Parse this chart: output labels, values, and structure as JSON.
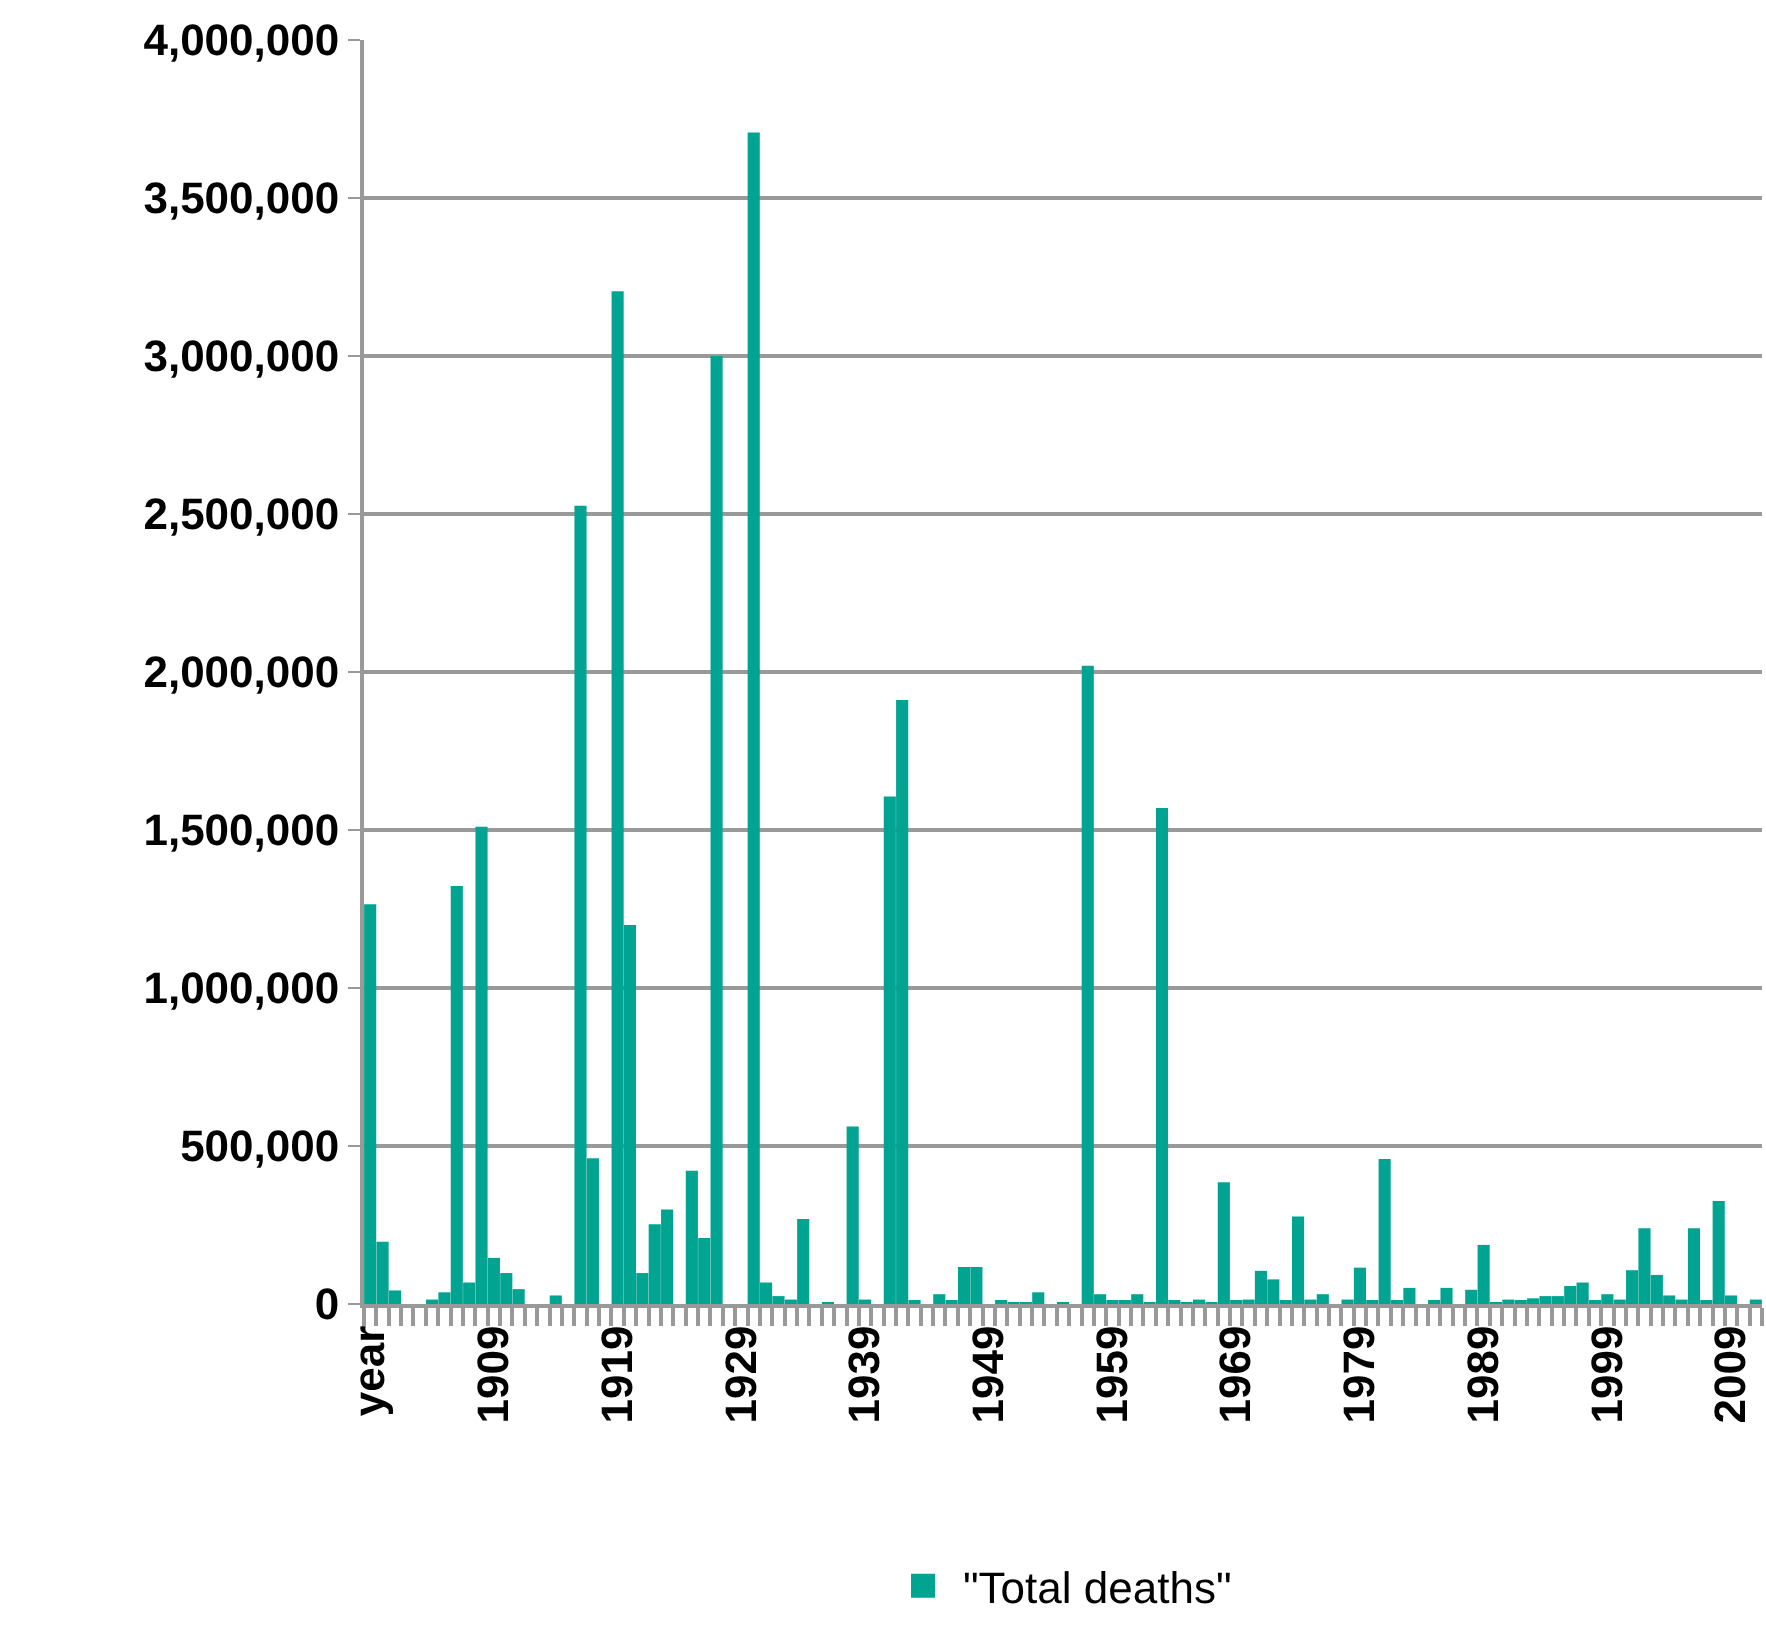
{
  "chart_data": {
    "type": "bar",
    "categories": [
      "year",
      null,
      null,
      null,
      null,
      null,
      null,
      null,
      null,
      null,
      "1909",
      null,
      null,
      null,
      null,
      null,
      null,
      null,
      null,
      null,
      "1919",
      null,
      null,
      null,
      null,
      null,
      null,
      null,
      null,
      null,
      "1929",
      null,
      null,
      null,
      null,
      null,
      null,
      null,
      null,
      null,
      "1939",
      null,
      null,
      null,
      null,
      null,
      null,
      null,
      null,
      null,
      "1949",
      null,
      null,
      null,
      null,
      null,
      null,
      null,
      null,
      null,
      "1959",
      null,
      null,
      null,
      null,
      null,
      null,
      null,
      null,
      null,
      "1969",
      null,
      null,
      null,
      null,
      null,
      null,
      null,
      null,
      null,
      "1979",
      null,
      null,
      null,
      null,
      null,
      null,
      null,
      null,
      null,
      "1989",
      null,
      null,
      null,
      null,
      null,
      null,
      null,
      null,
      null,
      "1999",
      null,
      null,
      null,
      null,
      null,
      null,
      null,
      null,
      null,
      "2009",
      null,
      null
    ],
    "series": [
      {
        "name": "\"Total deaths\"",
        "color": "#00a491",
        "values": [
          1265000,
          197000,
          43000,
          0,
          0,
          14000,
          37000,
          1323000,
          68000,
          1510000,
          146000,
          98000,
          47000,
          0,
          0,
          27000,
          0,
          2526000,
          461000,
          0,
          3205000,
          1199000,
          98000,
          252000,
          299000,
          0,
          422000,
          209000,
          3000000,
          0,
          0,
          3707000,
          68000,
          25000,
          14000,
          269000,
          0,
          6000,
          0,
          562000,
          14000,
          0,
          1606000,
          1911000,
          12000,
          0,
          31000,
          12000,
          117000,
          117000,
          0,
          10000,
          4000,
          4000,
          37000,
          0,
          6000,
          0,
          2020000,
          31000,
          10000,
          10000,
          31000,
          6000,
          1570000,
          10000,
          4000,
          14000,
          4000,
          385000,
          10000,
          14000,
          105000,
          78000,
          10000,
          277000,
          14000,
          31000,
          0,
          14000,
          115000,
          10000,
          459000,
          10000,
          51000,
          0,
          10000,
          51000,
          0,
          45000,
          187000,
          6000,
          14000,
          10000,
          18000,
          25000,
          25000,
          57000,
          68000,
          10000,
          31000,
          14000,
          107000,
          240000,
          92000,
          27000,
          14000,
          240000,
          10000,
          326000,
          27000,
          0,
          14000
        ]
      }
    ],
    "ylim": [
      0,
      4000000
    ],
    "yticks": [
      {
        "value": 0,
        "label": "0"
      },
      {
        "value": 500000,
        "label": "500,000"
      },
      {
        "value": 1000000,
        "label": "1,000,000"
      },
      {
        "value": 1500000,
        "label": "1,500,000"
      },
      {
        "value": 2000000,
        "label": "2,000,000"
      },
      {
        "value": 2500000,
        "label": "2,500,000"
      },
      {
        "value": 3000000,
        "label": "3,000,000"
      },
      {
        "value": 3500000,
        "label": "3,500,000"
      },
      {
        "value": 4000000,
        "label": "4,000,000"
      }
    ],
    "grid": "y",
    "legend": "bottom"
  }
}
